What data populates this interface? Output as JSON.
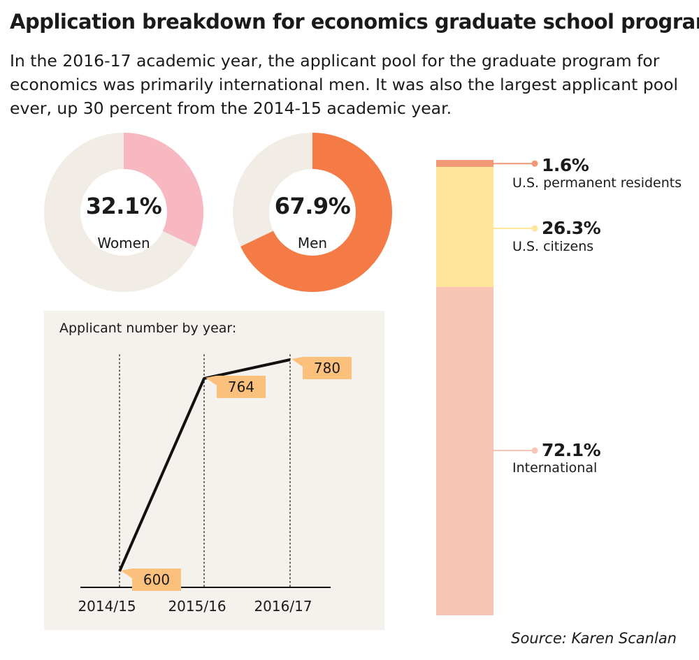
{
  "title": "Application breakdown for economics graduate school program",
  "subtitle": "In the 2016-17 academic year, the applicant pool for the graduate program for economics was primarily international men. It was also the largest applicant pool ever, up 30 percent from the 2014-15 academic year.",
  "source": "Source: Karen Scanlan",
  "colors": {
    "ring_bg": "#f1ece6",
    "women": "#f7b8c2",
    "men": "#f47b45",
    "panel_bg": "#f5f1ec",
    "label_bg": "#fcc07d",
    "permanent": "#f19876",
    "citizens": "#fde59a",
    "international": "#f8c5b4"
  },
  "chart_data": [
    {
      "type": "pie",
      "name": "gender",
      "slices": [
        {
          "label": "Women",
          "value": 32.1,
          "display": "32.1%"
        },
        {
          "label": "Men",
          "value": 67.9,
          "display": "67.9%"
        }
      ]
    },
    {
      "type": "line",
      "title": "Applicant number by year:",
      "categories": [
        "2014/15",
        "2015/16",
        "2016/17"
      ],
      "values": [
        600,
        764,
        780
      ],
      "value_labels": [
        "600",
        "764",
        "780"
      ]
    },
    {
      "type": "bar",
      "stacked": true,
      "segments": [
        {
          "label": "U.S. permanent residents",
          "value": 1.6,
          "display": "1.6%"
        },
        {
          "label": "U.S. citizens",
          "value": 26.3,
          "display": "26.3%"
        },
        {
          "label": "International",
          "value": 72.1,
          "display": "72.1%"
        }
      ]
    }
  ]
}
